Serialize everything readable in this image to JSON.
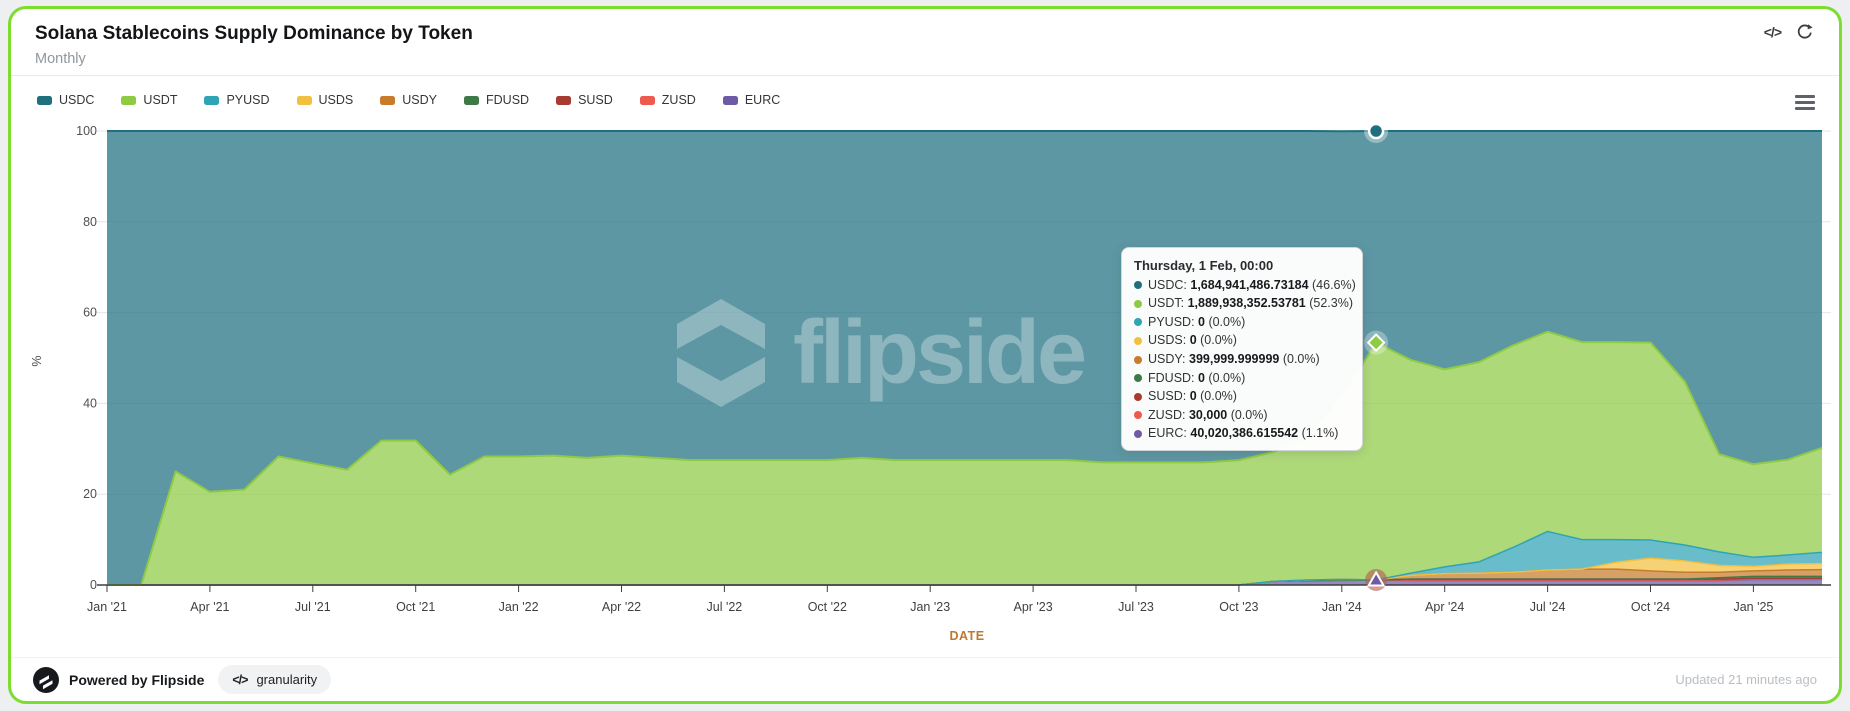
{
  "header": {
    "title": "Solana Stablecoins Supply Dominance by Token",
    "subtitle": "Monthly"
  },
  "icons": {
    "code_glyph": "</>"
  },
  "watermark": {
    "text": "flipside"
  },
  "footer": {
    "powered_by": "Powered by Flipside",
    "granularity_label": "granularity",
    "updated": "Updated 21 minutes ago"
  },
  "colors": {
    "card_border": "#7ddd2e",
    "axis_line": "#3f3f3f",
    "grid_line": "#e6e6e6",
    "date_label": "#bd7a2e"
  },
  "tooltip": {
    "title": "Thursday, 1 Feb, 00:00",
    "rows": [
      {
        "name": "USDC",
        "value": "1,684,941,486.73184",
        "pct": "(46.6%)",
        "color": "#1f6f7f"
      },
      {
        "name": "USDT",
        "value": "1,889,938,352.53781",
        "pct": "(52.3%)",
        "color": "#8fca45"
      },
      {
        "name": "PYUSD",
        "value": "0",
        "pct": "(0.0%)",
        "color": "#2fa4b5"
      },
      {
        "name": "USDS",
        "value": "0",
        "pct": "(0.0%)",
        "color": "#f2c040"
      },
      {
        "name": "USDY",
        "value": "399,999.999999",
        "pct": "(0.0%)",
        "color": "#c77b2b"
      },
      {
        "name": "FDUSD",
        "value": "0",
        "pct": "(0.0%)",
        "color": "#3e7a47"
      },
      {
        "name": "SUSD",
        "value": "0",
        "pct": "(0.0%)",
        "color": "#a63c31"
      },
      {
        "name": "ZUSD",
        "value": "30,000",
        "pct": "(0.0%)",
        "color": "#ef5a4e"
      },
      {
        "name": "EURC",
        "value": "40,020,386.615542",
        "pct": "(1.1%)",
        "color": "#6f5aa5"
      }
    ]
  },
  "chart_data": {
    "type": "area",
    "stacking": "percent",
    "xlabel": "DATE",
    "ylabel": "%",
    "ylim": [
      0,
      100
    ],
    "y_ticks": [
      0,
      20,
      40,
      60,
      80,
      100
    ],
    "x_tick_labels": [
      "Jan '21",
      "Apr '21",
      "Jul '21",
      "Oct '21",
      "Jan '22",
      "Apr '22",
      "Jul '22",
      "Oct '22",
      "Jan '23",
      "Apr '23",
      "Jul '23",
      "Oct '23",
      "Jan '24",
      "Apr '24",
      "Jul '24",
      "Oct '24",
      "Jan '25"
    ],
    "x_months": "monthly points from Jan 2021 to Mar 2025, values are % of total supply",
    "legend_position": "top-left",
    "grid": "horizontal",
    "stack_order": [
      "EURC",
      "ZUSD",
      "SUSD",
      "FDUSD",
      "USDY",
      "USDS",
      "PYUSD",
      "USDT",
      "USDC"
    ],
    "series": [
      {
        "name": "USDC",
        "color": "#1f6f7f",
        "line_width": 2,
        "values": [
          100,
          100,
          75,
          79.5,
          79,
          71.7,
          73.2,
          74.6,
          68.2,
          68.2,
          75.7,
          71.7,
          71.7,
          71.5,
          72,
          71.5,
          72,
          72.5,
          72.5,
          72.5,
          72.5,
          72.5,
          72,
          72.5,
          72.5,
          72.5,
          72.5,
          72.5,
          72.5,
          73,
          73,
          73,
          73,
          72.5,
          70.7,
          67.9,
          58.7,
          46.6,
          50.4,
          52.5,
          50.9,
          47.2,
          44.2,
          46.5,
          46.5,
          46.6,
          55.2,
          71.2,
          73.4,
          72.4,
          69.8
        ]
      },
      {
        "name": "USDT",
        "color": "#8fca45",
        "line_width": 2,
        "values": [
          0,
          0,
          25,
          20.5,
          21,
          28.3,
          26.8,
          25.4,
          31.8,
          31.8,
          24.3,
          28.3,
          28.3,
          28.5,
          28,
          28.5,
          28,
          27.5,
          27.5,
          27.5,
          27.5,
          27.5,
          28,
          27.5,
          27.5,
          27.5,
          27.5,
          27.5,
          27.5,
          27,
          27,
          27,
          27,
          27.5,
          28.5,
          31,
          40,
          52.3,
          47,
          43.5,
          44,
          44.5,
          44,
          43.5,
          43.5,
          43.5,
          36,
          21.5,
          20.5,
          21,
          23
        ]
      },
      {
        "name": "PYUSD",
        "color": "#2fa4b5",
        "line_width": 1.5,
        "values": [
          0,
          0,
          0,
          0,
          0,
          0,
          0,
          0,
          0,
          0,
          0,
          0,
          0,
          0,
          0,
          0,
          0,
          0,
          0,
          0,
          0,
          0,
          0,
          0,
          0,
          0,
          0,
          0,
          0,
          0,
          0,
          0,
          0,
          0,
          0,
          0,
          0,
          0,
          0.5,
          1.5,
          2.5,
          5.5,
          8.5,
          6.5,
          5,
          4,
          3.5,
          3,
          2,
          2,
          2.5
        ]
      },
      {
        "name": "USDS",
        "color": "#f2c040",
        "line_width": 1.5,
        "values": [
          0,
          0,
          0,
          0,
          0,
          0,
          0,
          0,
          0,
          0,
          0,
          0,
          0,
          0,
          0,
          0,
          0,
          0,
          0,
          0,
          0,
          0,
          0,
          0,
          0,
          0,
          0,
          0,
          0,
          0,
          0,
          0,
          0,
          0,
          0,
          0,
          0,
          0,
          0,
          0,
          0,
          0,
          0,
          0,
          1.5,
          2.8,
          2.5,
          1.5,
          1,
          1.3,
          1.3
        ]
      },
      {
        "name": "USDY",
        "color": "#c77b2b",
        "line_width": 1.5,
        "values": [
          0,
          0,
          0,
          0,
          0,
          0,
          0,
          0,
          0,
          0,
          0,
          0,
          0,
          0,
          0,
          0,
          0,
          0,
          0,
          0,
          0,
          0,
          0,
          0,
          0,
          0,
          0,
          0,
          0,
          0,
          0,
          0,
          0,
          0,
          0,
          0.1,
          0.2,
          0,
          0.8,
          1.2,
          1.3,
          1.5,
          2,
          2.2,
          2.2,
          1.8,
          1.5,
          1.2,
          1.2,
          1.4,
          1.5
        ]
      },
      {
        "name": "FDUSD",
        "color": "#3e7a47",
        "line_width": 1.5,
        "values": [
          0,
          0,
          0,
          0,
          0,
          0,
          0,
          0,
          0,
          0,
          0,
          0,
          0,
          0,
          0,
          0,
          0,
          0,
          0,
          0,
          0,
          0,
          0,
          0,
          0,
          0,
          0,
          0,
          0,
          0,
          0,
          0,
          0,
          0,
          0,
          0,
          0,
          0,
          0,
          0,
          0,
          0,
          0,
          0,
          0,
          0,
          0,
          0.3,
          0.4,
          0.4,
          0.4
        ]
      },
      {
        "name": "SUSD",
        "color": "#a63c31",
        "line_width": 1.5,
        "values": [
          0,
          0,
          0,
          0,
          0,
          0,
          0,
          0,
          0,
          0,
          0,
          0,
          0,
          0,
          0,
          0,
          0,
          0,
          0,
          0,
          0,
          0,
          0,
          0,
          0,
          0,
          0,
          0,
          0,
          0,
          0,
          0,
          0,
          0,
          0,
          0,
          0.05,
          0,
          0.2,
          0.2,
          0.2,
          0.2,
          0.2,
          0.2,
          0.2,
          0.2,
          0.2,
          0.2,
          0.2,
          0.2,
          0.2
        ]
      },
      {
        "name": "ZUSD",
        "color": "#ef5a4e",
        "line_width": 1.5,
        "values": [
          0,
          0,
          0,
          0,
          0,
          0,
          0,
          0,
          0,
          0,
          0,
          0,
          0,
          0,
          0,
          0,
          0,
          0,
          0,
          0,
          0,
          0,
          0,
          0,
          0,
          0,
          0,
          0,
          0,
          0,
          0,
          0,
          0,
          0,
          0,
          0,
          0,
          0,
          0.1,
          0.1,
          0.1,
          0.1,
          0.1,
          0.1,
          0.1,
          0.1,
          0.1,
          0.1,
          0.1,
          0.1,
          0.1
        ]
      },
      {
        "name": "EURC",
        "color": "#6f5aa5",
        "line_width": 1.5,
        "values": [
          0,
          0,
          0,
          0,
          0,
          0,
          0,
          0,
          0,
          0,
          0,
          0,
          0,
          0,
          0,
          0,
          0,
          0,
          0,
          0,
          0,
          0,
          0,
          0,
          0,
          0,
          0,
          0,
          0,
          0,
          0,
          0,
          0,
          0,
          0.8,
          1,
          1,
          1.1,
          1,
          1,
          1,
          1,
          1,
          1,
          1,
          1,
          1,
          1,
          1.2,
          1.2,
          1.2
        ]
      }
    ],
    "hover_point": {
      "month_index": 37,
      "markers": [
        {
          "series": "USDC",
          "shape": "circle",
          "cum_pct": 100
        },
        {
          "series": "USDT",
          "shape": "diamond",
          "cum_pct": 53.4
        },
        {
          "series": "EURC",
          "shape": "triangle",
          "cum_pct": 1.1
        }
      ]
    }
  }
}
